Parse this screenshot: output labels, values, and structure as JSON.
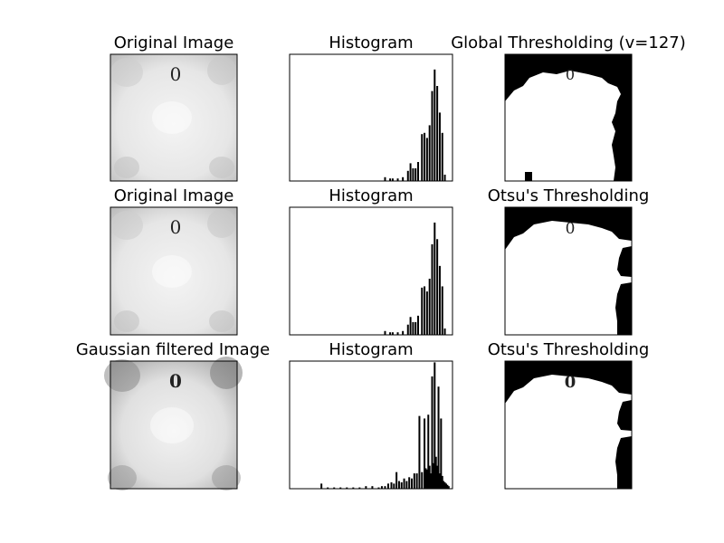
{
  "figure": {
    "background": "#ffffff",
    "rows": [
      {
        "image_title": "Original Image",
        "hist_title": "Histogram",
        "thresh_title": "Global Thresholding (v=127)",
        "image_char": "0",
        "threshold_char": "0"
      },
      {
        "image_title": "Original Image",
        "hist_title": "Histogram",
        "thresh_title": "Otsu's Thresholding",
        "image_char": "0",
        "threshold_char": "0"
      },
      {
        "image_title": "Gaussian filtered Image",
        "hist_title": "Histogram",
        "thresh_title": "Otsu's Thresholding",
        "image_char": "0",
        "threshold_char": "0"
      }
    ]
  },
  "chart_data": [
    {
      "type": "bar",
      "title": "Histogram",
      "xlim": [
        0,
        256
      ],
      "ylim": [
        0,
        1
      ],
      "x": [
        150,
        158,
        162,
        170,
        178,
        186,
        190,
        194,
        198,
        202,
        208,
        212,
        216,
        220,
        224,
        228,
        232,
        236,
        240,
        244
      ],
      "values": [
        0.03,
        0.02,
        0.02,
        0.02,
        0.03,
        0.08,
        0.14,
        0.1,
        0.1,
        0.15,
        0.37,
        0.38,
        0.34,
        0.44,
        0.71,
        0.88,
        0.75,
        0.54,
        0.38,
        0.05
      ]
    },
    {
      "type": "bar",
      "title": "Histogram",
      "xlim": [
        0,
        256
      ],
      "ylim": [
        0,
        1
      ],
      "x": [
        150,
        158,
        162,
        170,
        178,
        186,
        190,
        194,
        198,
        202,
        208,
        212,
        216,
        220,
        224,
        228,
        232,
        236,
        240,
        244
      ],
      "values": [
        0.03,
        0.02,
        0.02,
        0.02,
        0.03,
        0.08,
        0.14,
        0.1,
        0.1,
        0.15,
        0.37,
        0.38,
        0.34,
        0.44,
        0.71,
        0.88,
        0.75,
        0.54,
        0.38,
        0.05
      ]
    },
    {
      "type": "bar",
      "title": "Histogram",
      "xlim": [
        0,
        256
      ],
      "ylim": [
        0,
        1
      ],
      "x": [
        50,
        60,
        70,
        80,
        90,
        100,
        110,
        120,
        130,
        140,
        145,
        150,
        155,
        160,
        164,
        168,
        172,
        176,
        180,
        184,
        188,
        192,
        196,
        200,
        204,
        208,
        212,
        214,
        216,
        218,
        220,
        222,
        224,
        226,
        228,
        230,
        232,
        234,
        236,
        238,
        240,
        242,
        244,
        246,
        248,
        250
      ],
      "values": [
        0.04,
        0.01,
        0.01,
        0.01,
        0.01,
        0.01,
        0.01,
        0.02,
        0.02,
        0.01,
        0.02,
        0.02,
        0.04,
        0.05,
        0.04,
        0.13,
        0.06,
        0.05,
        0.08,
        0.06,
        0.09,
        0.08,
        0.12,
        0.12,
        0.57,
        0.13,
        0.55,
        0.16,
        0.15,
        0.58,
        0.18,
        0.12,
        0.88,
        0.2,
        0.99,
        0.25,
        0.18,
        0.8,
        0.12,
        0.55,
        0.1,
        0.06,
        0.05,
        0.04,
        0.03,
        0.02
      ]
    }
  ]
}
